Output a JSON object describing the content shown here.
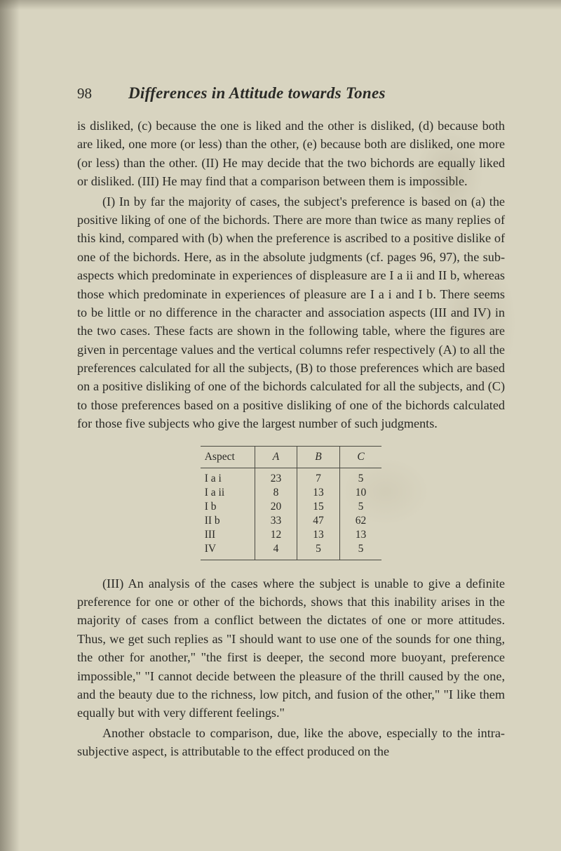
{
  "page_number": "98",
  "running_title": "Differences in Attitude towards Tones",
  "para1": "is disliked, (c) because the one is liked and the other is disliked, (d) because both are liked, one more (or less) than the other, (e) because both are disliked, one more (or less) than the other. (II) He may decide that the two bichords are equally liked or disliked. (III) He may find that a comparison between them is impossible.",
  "para2": "(I) In by far the majority of cases, the subject's preference is based on (a) the positive liking of one of the bichords. There are more than twice as many replies of this kind, compared with (b) when the preference is ascribed to a positive dislike of one of the bichords. Here, as in the absolute judgments (cf. pages 96, 97), the sub-aspects which predominate in experiences of displeasure are I a ii and II b, whereas those which predominate in experiences of pleasure are I a i and I b. There seems to be little or no difference in the character and association aspects (III and IV) in the two cases. These facts are shown in the following table, where the figures are given in percentage values and the vertical columns refer respectively (A) to all the preferences calculated for all the subjects, (B) to those preferences which are based on a positive disliking of one of the bichords calculated for all the subjects, and (C) to those preferences based on a positive disliking of one of the bichords calculated for those five subjects who give the largest number of such judgments.",
  "table": {
    "columns": [
      "Aspect",
      "A",
      "B",
      "C"
    ],
    "rows": [
      [
        "I a i",
        "23",
        "7",
        "5"
      ],
      [
        "I a ii",
        "8",
        "13",
        "10"
      ],
      [
        "I b",
        "20",
        "15",
        "5"
      ],
      [
        "II b",
        "33",
        "47",
        "62"
      ],
      [
        "III",
        "12",
        "13",
        "13"
      ],
      [
        "IV",
        "4",
        "5",
        "5"
      ]
    ]
  },
  "para3": "(III) An analysis of the cases where the subject is unable to give a definite preference for one or other of the bichords, shows that this inability arises in the majority of cases from a conflict between the dictates of one or more attitudes. Thus, we get such replies as \"I should want to use one of the sounds for one thing, the other for another,\" \"the first is deeper, the second more buoyant, preference impossible,\" \"I cannot decide between the pleasure of the thrill caused by the one, and the beauty due to the richness, low pitch, and fusion of the other,\" \"I like them equally but with very different feelings.\"",
  "para4": "Another obstacle to comparison, due, like the above, especially to the intra-subjective aspect, is attributable to the effect produced on the"
}
